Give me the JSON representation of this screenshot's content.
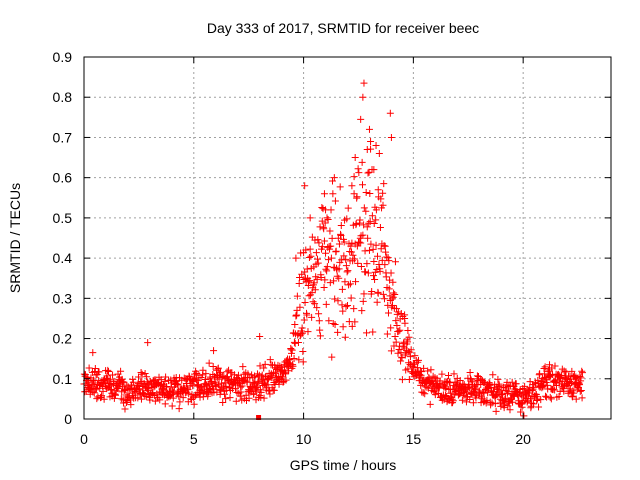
{
  "chart_data": {
    "type": "scatter",
    "title": "Day 333 of 2017, SRMTID for receiver beec",
    "xlabel": "GPS time / hours",
    "ylabel": "SRMTID / TECUs",
    "xlim": [
      0,
      24
    ],
    "ylim": [
      0,
      0.9
    ],
    "x_ticks": [
      0,
      5,
      10,
      15,
      20
    ],
    "y_ticks": [
      0,
      0.1,
      0.2,
      0.3,
      0.4,
      0.5,
      0.6,
      0.7,
      0.8,
      0.9
    ],
    "x_tick_labels": [
      "0",
      "5",
      "10",
      "15",
      "20"
    ],
    "y_tick_labels": [
      "0",
      "0.1",
      "0.2",
      "0.3",
      "0.4",
      "0.5",
      "0.6",
      "0.7",
      "0.8",
      "0.9"
    ],
    "grid": true,
    "marker": "+",
    "color": "#ff0000",
    "series": [
      {
        "name": "SRMTID",
        "profile": [
          {
            "x": 0.0,
            "y": 0.09
          },
          {
            "x": 1.0,
            "y": 0.085
          },
          {
            "x": 2.0,
            "y": 0.075
          },
          {
            "x": 3.0,
            "y": 0.08
          },
          {
            "x": 4.0,
            "y": 0.065
          },
          {
            "x": 5.0,
            "y": 0.08
          },
          {
            "x": 6.0,
            "y": 0.09
          },
          {
            "x": 7.0,
            "y": 0.085
          },
          {
            "x": 8.0,
            "y": 0.09
          },
          {
            "x": 9.0,
            "y": 0.11
          },
          {
            "x": 9.5,
            "y": 0.16
          },
          {
            "x": 10.0,
            "y": 0.3
          },
          {
            "x": 10.5,
            "y": 0.37
          },
          {
            "x": 11.0,
            "y": 0.4
          },
          {
            "x": 11.5,
            "y": 0.39
          },
          {
            "x": 12.0,
            "y": 0.38
          },
          {
            "x": 12.5,
            "y": 0.42
          },
          {
            "x": 13.0,
            "y": 0.46
          },
          {
            "x": 13.5,
            "y": 0.42
          },
          {
            "x": 14.0,
            "y": 0.28
          },
          {
            "x": 14.5,
            "y": 0.2
          },
          {
            "x": 15.0,
            "y": 0.13
          },
          {
            "x": 15.5,
            "y": 0.09
          },
          {
            "x": 16.0,
            "y": 0.075
          },
          {
            "x": 17.0,
            "y": 0.07
          },
          {
            "x": 18.0,
            "y": 0.07
          },
          {
            "x": 19.0,
            "y": 0.06
          },
          {
            "x": 20.0,
            "y": 0.05
          },
          {
            "x": 20.5,
            "y": 0.07
          },
          {
            "x": 21.0,
            "y": 0.095
          },
          {
            "x": 22.0,
            "y": 0.09
          },
          {
            "x": 22.7,
            "y": 0.085
          }
        ],
        "peaks": [
          {
            "x": 12.75,
            "y": 0.835
          },
          {
            "x": 12.7,
            "y": 0.8
          },
          {
            "x": 13.95,
            "y": 0.76
          },
          {
            "x": 12.6,
            "y": 0.745
          },
          {
            "x": 13.0,
            "y": 0.72
          },
          {
            "x": 13.05,
            "y": 0.69
          },
          {
            "x": 14.0,
            "y": 0.7
          },
          {
            "x": 12.9,
            "y": 0.67
          },
          {
            "x": 12.35,
            "y": 0.65
          },
          {
            "x": 13.3,
            "y": 0.68
          },
          {
            "x": 13.2,
            "y": 0.62
          },
          {
            "x": 11.4,
            "y": 0.6
          },
          {
            "x": 12.2,
            "y": 0.58
          },
          {
            "x": 10.95,
            "y": 0.56
          },
          {
            "x": 10.05,
            "y": 0.58
          },
          {
            "x": 11.0,
            "y": 0.52
          },
          {
            "x": 13.4,
            "y": 0.57
          },
          {
            "x": 12.3,
            "y": 0.56
          },
          {
            "x": 14.6,
            "y": 0.25
          },
          {
            "x": 14.75,
            "y": 0.22
          },
          {
            "x": 10.3,
            "y": 0.5
          },
          {
            "x": 9.65,
            "y": 0.4
          },
          {
            "x": 2.9,
            "y": 0.19
          },
          {
            "x": 8.0,
            "y": 0.205
          },
          {
            "x": 5.9,
            "y": 0.17
          },
          {
            "x": 0.4,
            "y": 0.165
          },
          {
            "x": 21.2,
            "y": 0.135
          }
        ],
        "points_per_hour": 60,
        "seed": 333
      }
    ],
    "special_markers": [
      {
        "x": 7.95,
        "y": 0.0,
        "shape": "square"
      }
    ]
  }
}
